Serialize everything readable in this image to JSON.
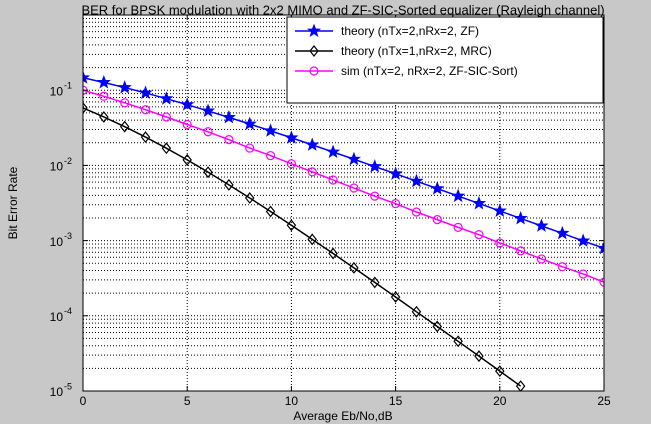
{
  "chart_data": {
    "type": "line",
    "title": "BER for BPSK modulation with 2x2 MIMO and ZF-SIC-Sorted equalizer (Rayleigh channel)",
    "x_label": "Average Eb/No,dB",
    "y_label": "Bit Error Rate",
    "xlim": [
      0,
      25
    ],
    "xticks": [
      0,
      5,
      10,
      15,
      20,
      25
    ],
    "ylim": [
      1e-05,
      1
    ],
    "log_y": true,
    "yticks": [
      {
        "value": 1e-05,
        "label": "10",
        "exponent": "-5"
      },
      {
        "value": 0.0001,
        "label": "10",
        "exponent": "-4"
      },
      {
        "value": 0.001,
        "label": "10",
        "exponent": "-3"
      },
      {
        "value": 0.01,
        "label": "10",
        "exponent": "-2"
      },
      {
        "value": 0.1,
        "label": "10",
        "exponent": "-1"
      }
    ],
    "grid": true,
    "minor_grid": true,
    "legend": "top-right",
    "series": [
      {
        "name": "theory (nTx=2,nRx=2, ZF)",
        "color": "#0000ff",
        "marker": "star",
        "x": [
          0,
          1,
          2,
          3,
          4,
          5,
          6,
          7,
          8,
          9,
          10,
          11,
          12,
          13,
          14,
          15,
          16,
          17,
          18,
          19,
          20,
          21,
          22,
          23,
          24,
          25
        ],
        "values": [
          0.1464,
          0.1267,
          0.1085,
          0.0919,
          0.0771,
          0.0642,
          0.053,
          0.0435,
          0.0355,
          0.0288,
          0.0233,
          0.01875,
          0.01507,
          0.01208,
          0.00966,
          0.00772,
          0.00616,
          0.00491,
          0.00391,
          0.00312,
          0.00248,
          0.00197,
          0.00157,
          0.00125,
          0.00099,
          0.00079
        ]
      },
      {
        "name": "theory (nTx=1,nRx=2, MRC)",
        "color": "#000000",
        "marker": "diamond",
        "x": [
          0,
          1,
          2,
          3,
          4,
          5,
          6,
          7,
          8,
          9,
          10,
          11,
          12,
          13,
          14,
          15,
          16,
          17,
          18,
          19,
          20,
          21
        ],
        "values": [
          0.058,
          0.0441,
          0.03276,
          0.02379,
          0.01692,
          0.01184,
          0.00813,
          0.00551,
          0.00369,
          0.00244,
          0.0016,
          0.00104,
          0.000674,
          0.000434,
          0.000278,
          0.000178,
          0.000113,
          7.21e-05,
          4.58e-05,
          2.91e-05,
          1.84e-05,
          1.16e-05
        ]
      },
      {
        "name": "sim (nTx=2, nRx=2, ZF-SIC-Sort)",
        "color": "#ff00ff",
        "marker": "circle",
        "x": [
          0,
          1,
          2,
          3,
          4,
          5,
          6,
          7,
          8,
          9,
          10,
          11,
          12,
          13,
          14,
          15,
          16,
          17,
          18,
          19,
          20,
          21,
          22,
          23,
          24,
          25
        ],
        "values": [
          0.1,
          0.083,
          0.068,
          0.055,
          0.044,
          0.035,
          0.028,
          0.022,
          0.017,
          0.0135,
          0.0105,
          0.0082,
          0.0064,
          0.005,
          0.0039,
          0.0031,
          0.0024,
          0.0019,
          0.0015,
          0.0012,
          0.00093,
          0.00073,
          0.00057,
          0.00045,
          0.00036,
          0.00028
        ]
      }
    ]
  }
}
